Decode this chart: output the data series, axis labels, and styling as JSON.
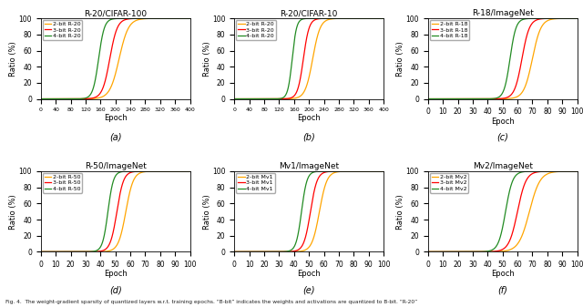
{
  "subplots": [
    {
      "title": "R-20/CIFAR-100",
      "xlabel": "Epoch",
      "ylabel": "Ratio (%)",
      "xlim": [
        0,
        400
      ],
      "xticks": [
        0,
        40,
        80,
        120,
        160,
        200,
        240,
        280,
        320,
        360,
        400
      ],
      "ylim": [
        0,
        100
      ],
      "yticks": [
        0,
        20,
        40,
        60,
        80,
        100
      ],
      "label": "(a)",
      "curves": [
        {
          "label": "2-bit R-20",
          "color": "#FFA500",
          "inflection": 210,
          "steepness": 0.08
        },
        {
          "label": "3-bit R-20",
          "color": "#FF0000",
          "inflection": 185,
          "steepness": 0.1
        },
        {
          "label": "4-bit R-20",
          "color": "#228B22",
          "inflection": 155,
          "steepness": 0.13
        }
      ],
      "x_start": 100
    },
    {
      "title": "R-20/CIFAR-10",
      "xlabel": "Epoch",
      "ylabel": "Ratio (%)",
      "xlim": [
        0,
        400
      ],
      "xticks": [
        0,
        40,
        80,
        120,
        160,
        200,
        240,
        280,
        320,
        360,
        400
      ],
      "ylim": [
        0,
        100
      ],
      "yticks": [
        0,
        20,
        40,
        60,
        80,
        100
      ],
      "label": "(b)",
      "curves": [
        {
          "label": "2-bit R-20",
          "color": "#FFA500",
          "inflection": 210,
          "steepness": 0.1
        },
        {
          "label": "3-bit R-20",
          "color": "#FF0000",
          "inflection": 185,
          "steepness": 0.13
        },
        {
          "label": "4-bit R-20",
          "color": "#228B22",
          "inflection": 155,
          "steepness": 0.17
        }
      ],
      "x_start": 100
    },
    {
      "title": "R-18/ImageNet",
      "xlabel": "Epoch",
      "ylabel": "Ratio (%)",
      "xlim": [
        0,
        100
      ],
      "xticks": [
        0,
        10,
        20,
        30,
        40,
        50,
        60,
        70,
        80,
        90,
        100
      ],
      "ylim": [
        0,
        100
      ],
      "yticks": [
        0,
        20,
        40,
        60,
        80,
        100
      ],
      "label": "(c)",
      "curves": [
        {
          "label": "2-bit R-18",
          "color": "#FFA500",
          "inflection": 70,
          "steepness": 0.35
        },
        {
          "label": "3-bit R-18",
          "color": "#FF0000",
          "inflection": 63,
          "steepness": 0.4
        },
        {
          "label": "4-bit R-18",
          "color": "#228B22",
          "inflection": 55,
          "steepness": 0.5
        }
      ],
      "x_start": 25
    },
    {
      "title": "R-50/ImageNet",
      "xlabel": "Epoch",
      "ylabel": "Ratio (%)",
      "xlim": [
        0,
        100
      ],
      "xticks": [
        0,
        10,
        20,
        30,
        40,
        50,
        60,
        70,
        80,
        90,
        100
      ],
      "ylim": [
        0,
        100
      ],
      "yticks": [
        0,
        20,
        40,
        60,
        80,
        100
      ],
      "label": "(d)",
      "curves": [
        {
          "label": "2-bit R-50",
          "color": "#FFA500",
          "inflection": 57,
          "steepness": 0.4
        },
        {
          "label": "3-bit R-50",
          "color": "#FF0000",
          "inflection": 51,
          "steepness": 0.45
        },
        {
          "label": "4-bit R-50",
          "color": "#228B22",
          "inflection": 45,
          "steepness": 0.55
        }
      ],
      "x_start": 18
    },
    {
      "title": "Mv1/ImageNet",
      "xlabel": "Epoch",
      "ylabel": "Ratio (%)",
      "xlim": [
        0,
        100
      ],
      "xticks": [
        0,
        10,
        20,
        30,
        40,
        50,
        60,
        70,
        80,
        90,
        100
      ],
      "ylim": [
        0,
        100
      ],
      "yticks": [
        0,
        20,
        40,
        60,
        80,
        100
      ],
      "label": "(e)",
      "curves": [
        {
          "label": "2-bit Mv1",
          "color": "#FFA500",
          "inflection": 57,
          "steepness": 0.4
        },
        {
          "label": "3-bit Mv1",
          "color": "#FF0000",
          "inflection": 51,
          "steepness": 0.45
        },
        {
          "label": "4-bit Mv1",
          "color": "#228B22",
          "inflection": 45,
          "steepness": 0.55
        }
      ],
      "x_start": 18
    },
    {
      "title": "Mv2/ImageNet",
      "xlabel": "Epoch",
      "ylabel": "Ratio (%)",
      "xlim": [
        0,
        100
      ],
      "xticks": [
        0,
        10,
        20,
        30,
        40,
        50,
        60,
        70,
        80,
        90,
        100
      ],
      "ylim": [
        0,
        100
      ],
      "yticks": [
        0,
        20,
        40,
        60,
        80,
        100
      ],
      "label": "(f)",
      "curves": [
        {
          "label": "2-bit Mv2",
          "color": "#FFA500",
          "inflection": 68,
          "steepness": 0.28
        },
        {
          "label": "3-bit Mv2",
          "color": "#FF0000",
          "inflection": 60,
          "steepness": 0.35
        },
        {
          "label": "4-bit Mv2",
          "color": "#228B22",
          "inflection": 52,
          "steepness": 0.42
        }
      ],
      "x_start": 25
    }
  ],
  "caption": "Fig. 4.  The weight-gradient sparsity of quantized layers w.r.t. training epochs. “B-bit” indicates the weights and activations are quantized to B-bit. “R-20”",
  "fig_bg": "#ffffff"
}
